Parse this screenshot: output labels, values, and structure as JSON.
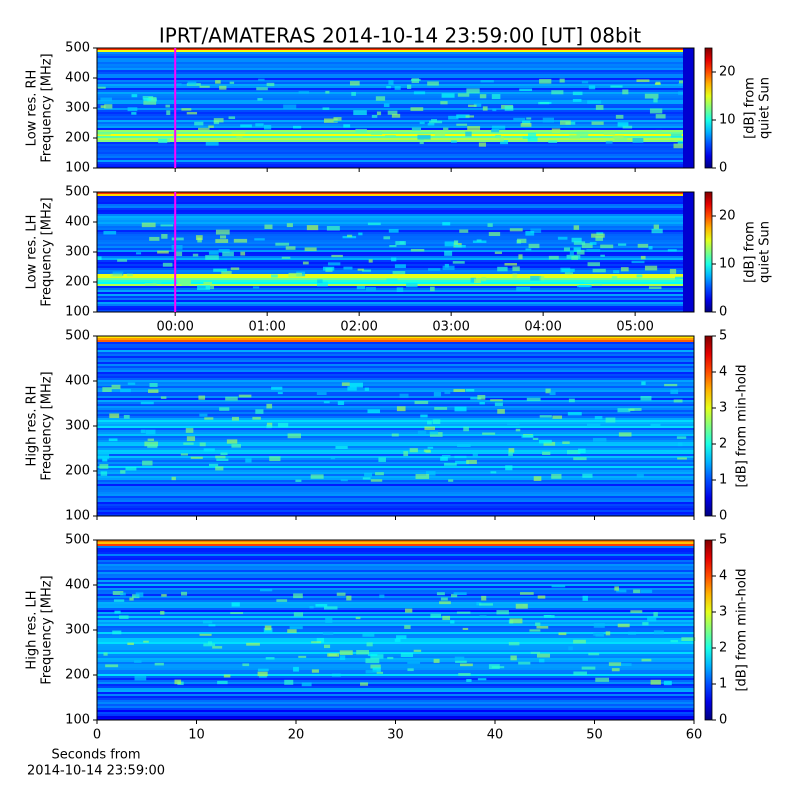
{
  "title": "IPRT/AMATERAS 2014-10-14 23:59:00 [UT]   08bit",
  "chart_data": [
    {
      "type": "heatmap",
      "ylabel": [
        "Low res. RH",
        "Frequency [MHz]"
      ],
      "ylim": [
        100,
        500
      ],
      "yticks": [
        100,
        200,
        300,
        400,
        500
      ],
      "xlim": [
        -0.85,
        5.64
      ],
      "marker_x": 0,
      "marker_color": "#ff00ff",
      "colorbar": {
        "label": [
          "[dB] from",
          "quiet Sun"
        ],
        "lim": [
          0,
          25
        ],
        "ticks": [
          0,
          10,
          20
        ]
      }
    },
    {
      "type": "heatmap",
      "ylabel": [
        "Low res. LH",
        "Frequency [MHz]"
      ],
      "ylim": [
        100,
        500
      ],
      "yticks": [
        100,
        200,
        300,
        400,
        500
      ],
      "xlim": [
        -0.85,
        5.64
      ],
      "marker_x": 0,
      "marker_color": "#ff00ff",
      "xticks": [
        {
          "value": 0,
          "label": "00:00"
        },
        {
          "value": 1,
          "label": "01:00"
        },
        {
          "value": 2,
          "label": "02:00"
        },
        {
          "value": 3,
          "label": "03:00"
        },
        {
          "value": 4,
          "label": "04:00"
        },
        {
          "value": 5,
          "label": "05:00"
        }
      ],
      "colorbar": {
        "label": [
          "[dB] from",
          "quiet Sun"
        ],
        "lim": [
          0,
          25
        ],
        "ticks": [
          0,
          10,
          20
        ]
      }
    },
    {
      "type": "heatmap",
      "ylabel": [
        "High res. RH",
        "Frequency [MHz]"
      ],
      "ylim": [
        100,
        500
      ],
      "yticks": [
        100,
        200,
        300,
        400,
        500
      ],
      "xlim": [
        0,
        60
      ],
      "colorbar": {
        "label": [
          "[dB] from min-hold"
        ],
        "lim": [
          0,
          5
        ],
        "ticks": [
          0,
          1,
          2,
          3,
          4,
          5
        ]
      }
    },
    {
      "type": "heatmap",
      "ylabel": [
        "High res. LH",
        "Frequency [MHz]"
      ],
      "ylim": [
        100,
        500
      ],
      "yticks": [
        100,
        200,
        300,
        400,
        500
      ],
      "xlim": [
        0,
        60
      ],
      "xticks": [
        0,
        10,
        20,
        30,
        40,
        50,
        60
      ],
      "xlabel": [
        "Seconds from",
        "2014-10-14 23:59:00"
      ],
      "colorbar": {
        "label": [
          "[dB] from min-hold"
        ],
        "lim": [
          0,
          5
        ],
        "ticks": [
          0,
          1,
          2,
          3,
          4,
          5
        ]
      }
    }
  ]
}
